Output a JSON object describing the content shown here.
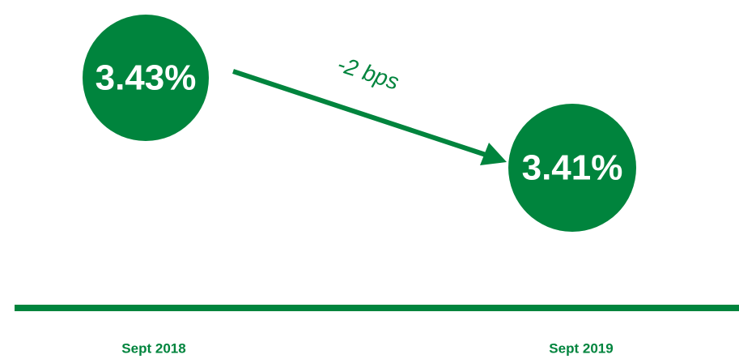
{
  "nodes": [
    {
      "label": "3.43%",
      "date": "Sept 2018"
    },
    {
      "label": "3.41%",
      "date": "Sept 2019"
    }
  ],
  "change": {
    "label": "-2 bps"
  }
}
